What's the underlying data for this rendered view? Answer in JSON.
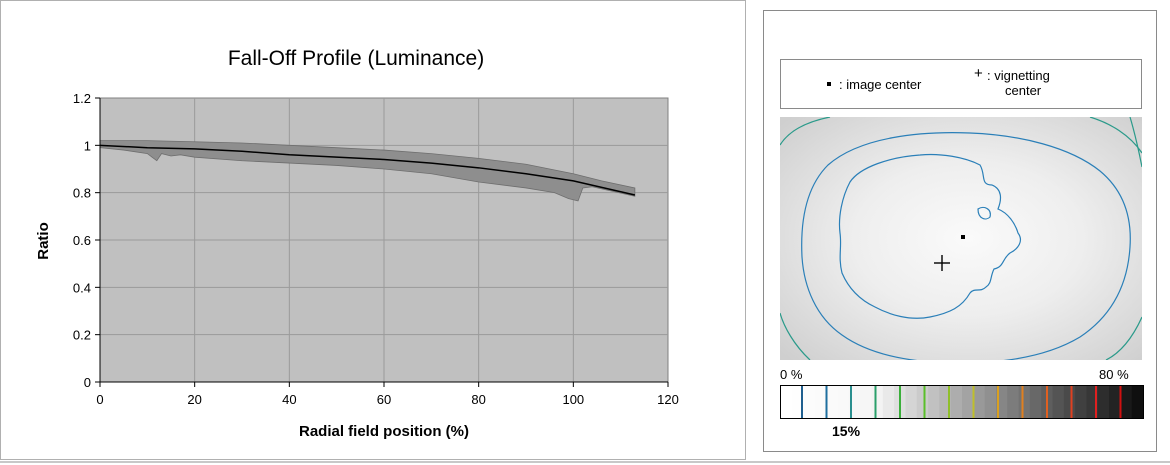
{
  "chart_data": {
    "type": "area",
    "title": "Fall-Off Profile (Luminance)",
    "xlabel": "Radial field position (%)",
    "ylabel": "Ratio",
    "xlim": [
      0,
      120
    ],
    "ylim": [
      0,
      1.2
    ],
    "xticks": [
      "0",
      "20",
      "40",
      "60",
      "80",
      "100",
      "120"
    ],
    "yticks": [
      "0",
      "0.2",
      "0.4",
      "0.6",
      "0.8",
      "1",
      "1.2"
    ],
    "grid": true,
    "plot_background": "#c0c0c0",
    "band_color": "#8e8e8e",
    "mean_line": {
      "x": [
        0,
        10,
        20,
        30,
        40,
        50,
        60,
        70,
        80,
        90,
        100,
        113
      ],
      "y": [
        1.0,
        0.99,
        0.985,
        0.975,
        0.96,
        0.95,
        0.94,
        0.925,
        0.905,
        0.88,
        0.85,
        0.79
      ]
    },
    "band_upper": {
      "x": [
        0,
        10,
        20,
        30,
        40,
        50,
        60,
        70,
        80,
        90,
        100,
        106,
        113
      ],
      "y": [
        1.02,
        1.02,
        1.015,
        1.01,
        1.0,
        0.99,
        0.98,
        0.965,
        0.945,
        0.92,
        0.88,
        0.85,
        0.82
      ]
    },
    "band_lower": {
      "x": [
        0,
        5,
        10,
        11,
        12,
        13,
        15,
        17,
        20,
        30,
        40,
        50,
        60,
        70,
        80,
        90,
        96,
        99,
        101,
        102,
        104,
        113
      ],
      "y": [
        0.99,
        0.98,
        0.965,
        0.95,
        0.935,
        0.965,
        0.955,
        0.96,
        0.95,
        0.935,
        0.925,
        0.915,
        0.9,
        0.88,
        0.845,
        0.82,
        0.8,
        0.775,
        0.765,
        0.82,
        0.825,
        0.785
      ]
    }
  },
  "vignetting": {
    "legend": {
      "image_center": ": image center",
      "vignetting_center_line1": ": vignetting",
      "vignetting_center_line2": "center"
    },
    "scale_min_label": "0 %",
    "scale_max_label": "80 %",
    "contour_step_label": "15%",
    "colors": {
      "map_background": "#e2e2e2",
      "contour_inner": "#2a7fb8",
      "contour_outer": "#2a9a8a"
    }
  }
}
